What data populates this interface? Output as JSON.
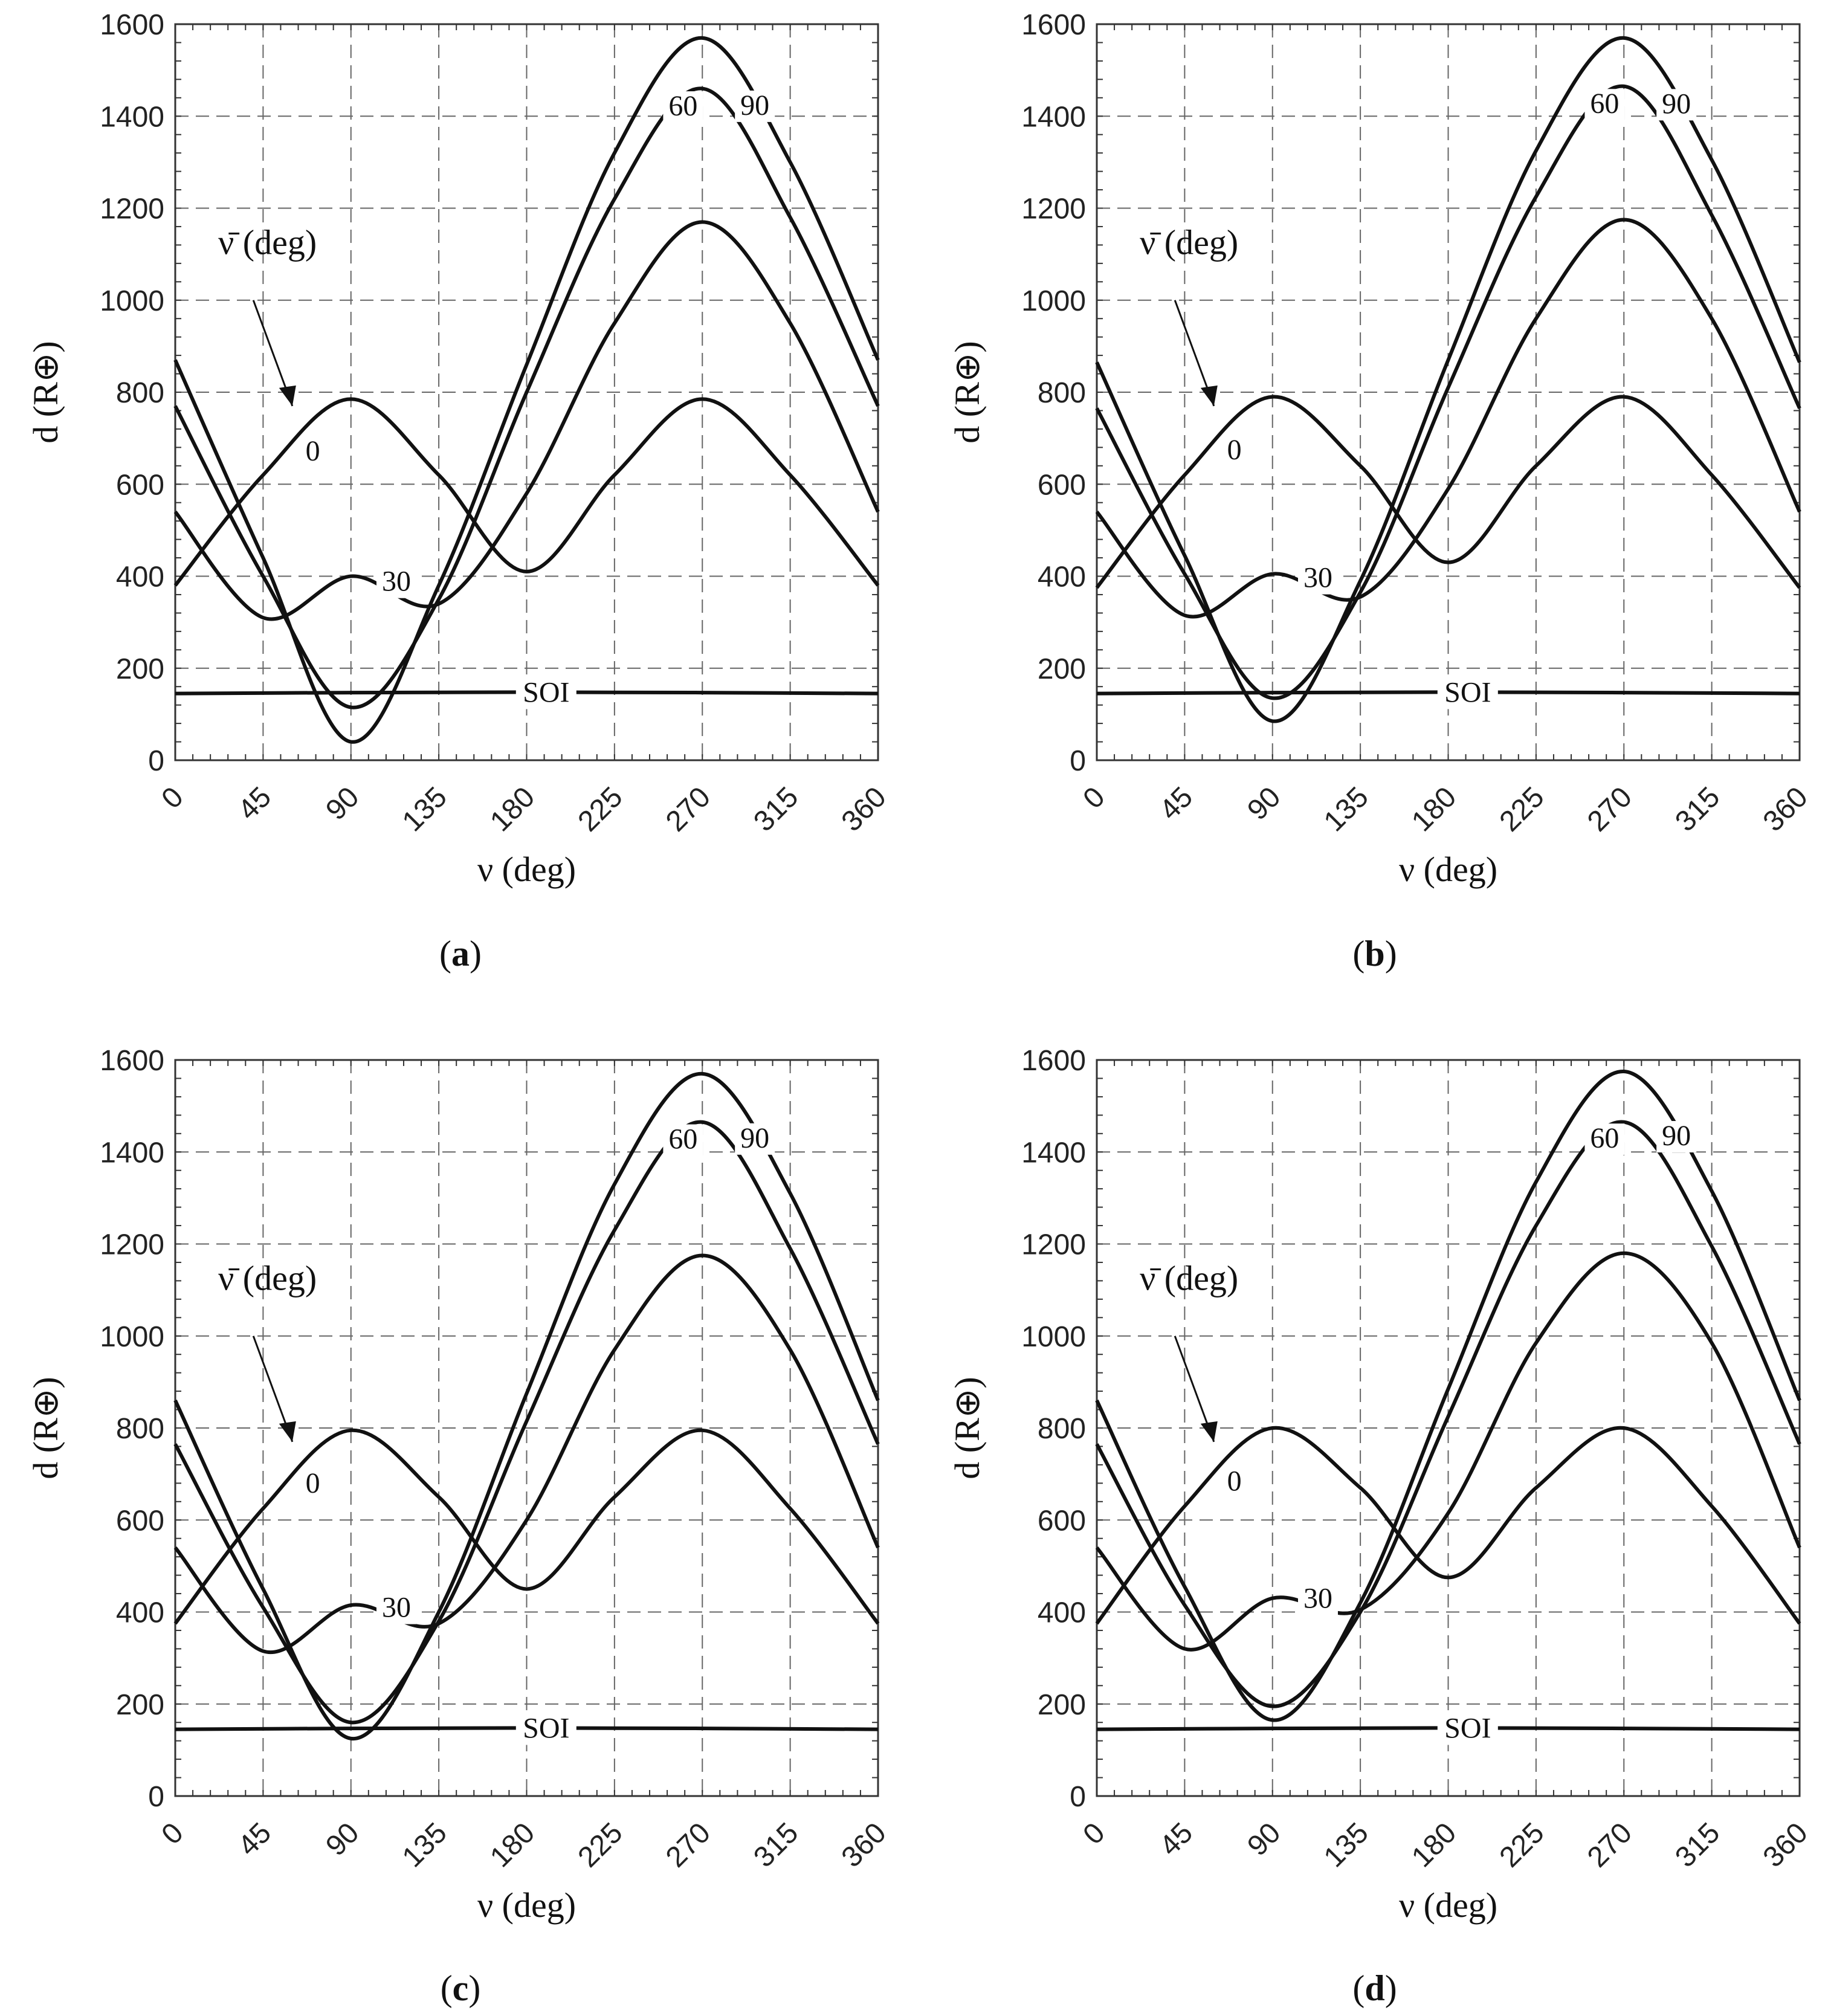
{
  "figure": {
    "panels": [
      {
        "id": "a",
        "caption_letter": "a"
      },
      {
        "id": "b",
        "caption_letter": "b"
      },
      {
        "id": "c",
        "caption_letter": "c"
      },
      {
        "id": "d",
        "caption_letter": "d"
      }
    ]
  },
  "chart_data": [
    {
      "panel": "a",
      "type": "line",
      "xlabel": "ν (deg)",
      "ylabel": "d (R⊕)",
      "xlim": [
        0,
        360
      ],
      "ylim": [
        0,
        1600
      ],
      "xticks": [
        0,
        45,
        90,
        135,
        180,
        225,
        270,
        315,
        360
      ],
      "yticks": [
        0,
        200,
        400,
        600,
        800,
        1000,
        1200,
        1400,
        1600
      ],
      "grid": true,
      "legend_title": "ν̄ (deg)",
      "series": [
        {
          "name": "0",
          "x": [
            0,
            45,
            90,
            135,
            180,
            225,
            270,
            315,
            360
          ],
          "y": [
            380,
            620,
            785,
            620,
            410,
            620,
            785,
            620,
            380
          ]
        },
        {
          "name": "30",
          "x": [
            0,
            45,
            90,
            135,
            180,
            225,
            270,
            315,
            360
          ],
          "y": [
            540,
            310,
            400,
            340,
            580,
            950,
            1170,
            950,
            540
          ]
        },
        {
          "name": "60",
          "x": [
            0,
            45,
            90,
            135,
            180,
            225,
            270,
            315,
            360
          ],
          "y": [
            770,
            400,
            115,
            350,
            800,
            1220,
            1460,
            1180,
            770
          ]
        },
        {
          "name": "90",
          "x": [
            0,
            45,
            90,
            135,
            180,
            225,
            270,
            315,
            360
          ],
          "y": [
            870,
            440,
            40,
            380,
            860,
            1320,
            1570,
            1300,
            870
          ]
        },
        {
          "name": "SOI",
          "x": [
            0,
            90,
            180,
            270,
            360
          ],
          "y": [
            145,
            147,
            148,
            147,
            145
          ]
        }
      ]
    },
    {
      "panel": "b",
      "type": "line",
      "xlabel": "ν (deg)",
      "ylabel": "d (R⊕)",
      "xlim": [
        0,
        360
      ],
      "ylim": [
        0,
        1600
      ],
      "xticks": [
        0,
        45,
        90,
        135,
        180,
        225,
        270,
        315,
        360
      ],
      "yticks": [
        0,
        200,
        400,
        600,
        800,
        1000,
        1200,
        1400,
        1600
      ],
      "grid": true,
      "legend_title": "ν̄ (deg)",
      "series": [
        {
          "name": "0",
          "x": [
            0,
            45,
            90,
            135,
            180,
            225,
            270,
            315,
            360
          ],
          "y": [
            375,
            620,
            790,
            640,
            430,
            640,
            790,
            620,
            375
          ]
        },
        {
          "name": "30",
          "x": [
            0,
            45,
            90,
            135,
            180,
            225,
            270,
            315,
            360
          ],
          "y": [
            540,
            315,
            405,
            355,
            590,
            960,
            1175,
            960,
            540
          ]
        },
        {
          "name": "60",
          "x": [
            0,
            45,
            90,
            135,
            180,
            225,
            270,
            315,
            360
          ],
          "y": [
            765,
            405,
            135,
            365,
            810,
            1225,
            1465,
            1185,
            765
          ]
        },
        {
          "name": "90",
          "x": [
            0,
            45,
            90,
            135,
            180,
            225,
            270,
            315,
            360
          ],
          "y": [
            865,
            445,
            85,
            390,
            870,
            1325,
            1570,
            1305,
            865
          ]
        },
        {
          "name": "SOI",
          "x": [
            0,
            90,
            180,
            270,
            360
          ],
          "y": [
            145,
            147,
            148,
            147,
            145
          ]
        }
      ]
    },
    {
      "panel": "c",
      "type": "line",
      "xlabel": "ν (deg)",
      "ylabel": "d (R⊕)",
      "xlim": [
        0,
        360
      ],
      "ylim": [
        0,
        1600
      ],
      "xticks": [
        0,
        45,
        90,
        135,
        180,
        225,
        270,
        315,
        360
      ],
      "yticks": [
        0,
        200,
        400,
        600,
        800,
        1000,
        1200,
        1400,
        1600
      ],
      "grid": true,
      "legend_title": "ν̄ (deg)",
      "series": [
        {
          "name": "0",
          "x": [
            0,
            45,
            90,
            135,
            180,
            225,
            270,
            315,
            360
          ],
          "y": [
            375,
            625,
            795,
            650,
            450,
            650,
            795,
            625,
            375
          ]
        },
        {
          "name": "30",
          "x": [
            0,
            45,
            90,
            135,
            180,
            225,
            270,
            315,
            360
          ],
          "y": [
            540,
            315,
            415,
            375,
            600,
            970,
            1175,
            970,
            540
          ]
        },
        {
          "name": "60",
          "x": [
            0,
            45,
            90,
            135,
            180,
            225,
            270,
            315,
            360
          ],
          "y": [
            765,
            410,
            160,
            380,
            815,
            1230,
            1465,
            1190,
            765
          ]
        },
        {
          "name": "90",
          "x": [
            0,
            45,
            90,
            135,
            180,
            225,
            270,
            315,
            360
          ],
          "y": [
            860,
            450,
            125,
            400,
            875,
            1330,
            1570,
            1310,
            860
          ]
        },
        {
          "name": "SOI",
          "x": [
            0,
            90,
            180,
            270,
            360
          ],
          "y": [
            145,
            147,
            148,
            147,
            145
          ]
        }
      ]
    },
    {
      "panel": "d",
      "type": "line",
      "xlabel": "ν (deg)",
      "ylabel": "d (R⊕)",
      "xlim": [
        0,
        360
      ],
      "ylim": [
        0,
        1600
      ],
      "xticks": [
        0,
        45,
        90,
        135,
        180,
        225,
        270,
        315,
        360
      ],
      "yticks": [
        0,
        200,
        400,
        600,
        800,
        1000,
        1200,
        1400,
        1600
      ],
      "grid": true,
      "legend_title": "ν̄ (deg)",
      "series": [
        {
          "name": "0",
          "x": [
            0,
            45,
            90,
            135,
            180,
            225,
            270,
            315,
            360
          ],
          "y": [
            375,
            630,
            800,
            670,
            475,
            670,
            800,
            630,
            375
          ]
        },
        {
          "name": "30",
          "x": [
            0,
            45,
            90,
            135,
            180,
            225,
            270,
            315,
            360
          ],
          "y": [
            540,
            320,
            430,
            405,
            615,
            985,
            1180,
            985,
            540
          ]
        },
        {
          "name": "60",
          "x": [
            0,
            45,
            90,
            135,
            180,
            225,
            270,
            315,
            360
          ],
          "y": [
            765,
            415,
            195,
            400,
            825,
            1240,
            1465,
            1195,
            765
          ]
        },
        {
          "name": "90",
          "x": [
            0,
            45,
            90,
            135,
            180,
            225,
            270,
            315,
            360
          ],
          "y": [
            860,
            455,
            165,
            420,
            885,
            1335,
            1575,
            1315,
            860
          ]
        },
        {
          "name": "SOI",
          "x": [
            0,
            90,
            180,
            270,
            360
          ],
          "y": [
            145,
            147,
            148,
            147,
            145
          ]
        }
      ]
    }
  ]
}
